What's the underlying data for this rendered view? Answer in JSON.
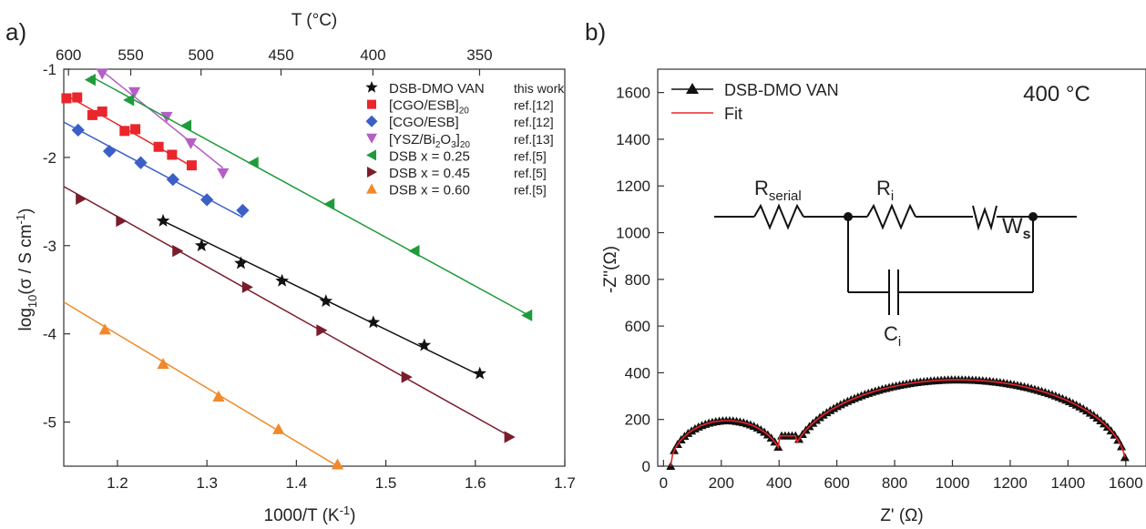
{
  "panels": {
    "a_label": "a)",
    "b_label": "b)"
  },
  "chart_data": [
    {
      "id": "a",
      "type": "scatter",
      "xlabel": "1000/T (K",
      "xlabel_sup": "-1",
      "xlabel_end": ")",
      "ylabel_pre": "log",
      "ylabel_sub": "10",
      "ylabel_post": "(σ / S cm",
      "ylabel_sup": "-1",
      "ylabel_end": ")",
      "top_xlabel": "T (°C)",
      "xlim": [
        1.14,
        1.7
      ],
      "ylim": [
        -5.5,
        -1
      ],
      "xticks": [
        "1.2",
        "1.3",
        "1.4",
        "1.5",
        "1.6",
        "1.7"
      ],
      "yticks": [
        "-1",
        "-2",
        "-3",
        "-4",
        "-5"
      ],
      "top_ticks": [
        "600",
        "550",
        "500",
        "450",
        "400",
        "350"
      ],
      "top_tick_celsius": [
        600,
        550,
        500,
        450,
        400,
        350
      ],
      "grid": false,
      "legend_position": "top-right",
      "series": [
        {
          "name": "DSB-DMO VAN",
          "ref": "this work",
          "marker": "star",
          "color": "#111111",
          "points": [
            [
              1.251,
              -2.72
            ],
            [
              1.294,
              -3.0
            ],
            [
              1.338,
              -3.2
            ],
            [
              1.384,
              -3.4
            ],
            [
              1.433,
              -3.63
            ],
            [
              1.486,
              -3.87
            ],
            [
              1.543,
              -4.13
            ],
            [
              1.605,
              -4.45
            ]
          ],
          "fit": [
            [
              1.251,
              -2.72
            ],
            [
              1.605,
              -4.47
            ]
          ]
        },
        {
          "name": "[CGO/ESB]",
          "name_sub": "20",
          "ref": "ref.[12]",
          "marker": "square",
          "color": "#e8262b",
          "points": [
            [
              1.143,
              -1.33
            ],
            [
              1.155,
              -1.32
            ],
            [
              1.172,
              -1.52
            ],
            [
              1.183,
              -1.48
            ],
            [
              1.208,
              -1.7
            ],
            [
              1.22,
              -1.68
            ],
            [
              1.246,
              -1.88
            ],
            [
              1.261,
              -1.97
            ],
            [
              1.283,
              -2.09
            ]
          ],
          "fit": [
            [
              1.14,
              -1.28
            ],
            [
              1.283,
              -2.1
            ]
          ]
        },
        {
          "name": "[CGO/ESB]",
          "ref": "ref.[12]",
          "marker": "diamond",
          "color": "#3b5fc6",
          "points": [
            [
              1.156,
              -1.69
            ],
            [
              1.191,
              -1.93
            ],
            [
              1.226,
              -2.06
            ],
            [
              1.262,
              -2.25
            ],
            [
              1.3,
              -2.48
            ],
            [
              1.34,
              -2.6
            ]
          ],
          "fit": [
            [
              1.14,
              -1.6
            ],
            [
              1.34,
              -2.68
            ]
          ]
        },
        {
          "name": "[YSZ/Bi",
          "name_sub2": "2",
          "name_mid": "O",
          "name_sub3": "3",
          "name_end": "]",
          "name_sub": "20",
          "ref": "ref.[13]",
          "marker": "triangle-down",
          "color": "#b55fc6",
          "points": [
            [
              1.183,
              -1.05
            ],
            [
              1.219,
              -1.26
            ],
            [
              1.255,
              -1.54
            ],
            [
              1.282,
              -1.84
            ],
            [
              1.318,
              -2.18
            ]
          ],
          "fit": [
            [
              1.183,
              -1.02
            ],
            [
              1.318,
              -2.12
            ]
          ]
        },
        {
          "name": "DSB x = 0.25",
          "ref": "ref.[5]",
          "marker": "triangle-left",
          "color": "#1f9b3b",
          "points": [
            [
              1.17,
              -1.12
            ],
            [
              1.213,
              -1.35
            ],
            [
              1.277,
              -1.64
            ],
            [
              1.352,
              -2.06
            ],
            [
              1.437,
              -2.53
            ],
            [
              1.532,
              -3.06
            ],
            [
              1.658,
              -3.79
            ]
          ],
          "fit": [
            [
              1.17,
              -1.08
            ],
            [
              1.658,
              -3.78
            ]
          ]
        },
        {
          "name": "DSB x = 0.45",
          "ref": "ref.[5]",
          "marker": "triangle-right",
          "color": "#7a1d2b",
          "points": [
            [
              1.159,
              -2.47
            ],
            [
              1.204,
              -2.72
            ],
            [
              1.267,
              -3.06
            ],
            [
              1.345,
              -3.47
            ],
            [
              1.428,
              -3.96
            ],
            [
              1.523,
              -4.49
            ],
            [
              1.638,
              -5.17
            ]
          ],
          "fit": [
            [
              1.14,
              -2.33
            ],
            [
              1.64,
              -5.17
            ]
          ]
        },
        {
          "name": "DSB x = 0.60",
          "ref": "ref.[5]",
          "marker": "triangle-up",
          "color": "#f0892a",
          "points": [
            [
              1.186,
              -3.95
            ],
            [
              1.251,
              -4.34
            ],
            [
              1.313,
              -4.71
            ],
            [
              1.38,
              -5.08
            ],
            [
              1.446,
              -5.48
            ]
          ],
          "fit": [
            [
              1.14,
              -3.64
            ],
            [
              1.446,
              -5.5
            ]
          ]
        }
      ]
    },
    {
      "id": "b",
      "type": "scatter",
      "xlabel": "Z' (Ω)",
      "ylabel": "-Z''(Ω)",
      "xlim": [
        -20,
        1670
      ],
      "ylim": [
        0,
        1700
      ],
      "xticks": [
        "0",
        "200",
        "400",
        "600",
        "800",
        "1000",
        "1200",
        "1400",
        "1600"
      ],
      "yticks": [
        "0",
        "200",
        "400",
        "600",
        "800",
        "1000",
        "1200",
        "1400",
        "1600"
      ],
      "grid": false,
      "legend_position": "top-left",
      "temperature_label": "400 °C",
      "series": [
        {
          "name": "DSB-DMO VAN",
          "marker": "triangle-up",
          "color": "#111111"
        },
        {
          "name": "Fit",
          "marker": "line",
          "color": "#e8262b"
        }
      ],
      "arc1": {
        "center": 220,
        "radius": 195,
        "height": 195
      },
      "arc2": {
        "center": 1020,
        "radius": 580,
        "height": 370
      },
      "valley": [
        430,
        130
      ],
      "circuit": {
        "r_serial_label": "R",
        "r_serial_sub": "serial",
        "r_i_label": "R",
        "r_i_sub": "i",
        "w_label": "W",
        "w_sub": "s",
        "c_label": "C",
        "c_sub": "i"
      }
    }
  ]
}
